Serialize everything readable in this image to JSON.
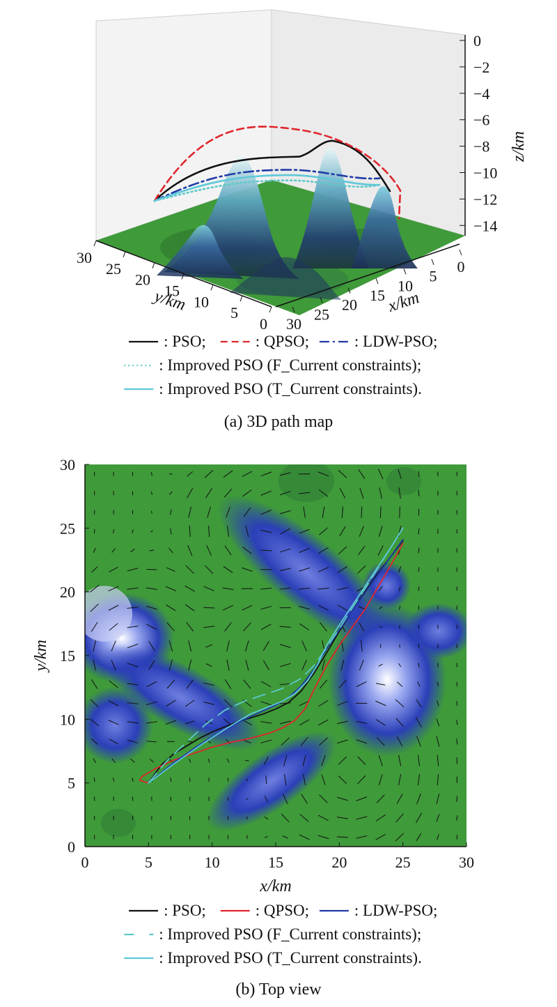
{
  "colors": {
    "terrain_green": "#3f9a3a",
    "terrain_blue": "#2b3fb8",
    "pso": "#111111",
    "qpso": "#e0252b",
    "ldw_pso": "#1f3aa6",
    "improved_f": "#5ec8c8",
    "improved_t": "#5ec8d8"
  },
  "chart_data": [
    {
      "type": "line",
      "view": "3d-surface",
      "caption": "(a) 3D path map",
      "xlabel": "x/km",
      "ylabel": "y/km",
      "zlabel": "z/km",
      "x_ticks": [
        "30",
        "25",
        "20",
        "15",
        "10",
        "5",
        "0"
      ],
      "y_ticks": [
        "30",
        "25",
        "20",
        "15",
        "10",
        "5",
        "0"
      ],
      "z_ticks": [
        "0",
        "−2",
        "−4",
        "−6",
        "−8",
        "−10",
        "−12",
        "−14"
      ],
      "xlim": [
        0,
        30
      ],
      "ylim": [
        0,
        30
      ],
      "zlim": [
        -15,
        0
      ],
      "grid": false,
      "legend_lines": [
        [
          {
            "label": ": PSO;",
            "series": "pso"
          },
          {
            "label": ": QPSO;",
            "series": "qpso"
          },
          {
            "label": ": LDW-PSO;",
            "series": "ldw_pso"
          }
        ],
        [
          {
            "label": ": Improved PSO (F_Current constraints);",
            "series": "improved_f"
          }
        ],
        [
          {
            "label": ": Improved PSO (T_Current constraints).",
            "series": "improved_t"
          }
        ]
      ],
      "series": [
        {
          "key": "pso",
          "min_depth": -7.6,
          "end_depth": -13
        },
        {
          "key": "qpso",
          "min_depth": -6.7,
          "end_depth": -13.5
        },
        {
          "key": "ldw_pso",
          "min_depth": -9.8,
          "end_depth": -11.5
        },
        {
          "key": "improved_f",
          "min_depth": -10.6,
          "end_depth": -12
        },
        {
          "key": "improved_t",
          "min_depth": -10.2,
          "end_depth": -12
        }
      ]
    },
    {
      "type": "line",
      "view": "top",
      "caption": "(b) Top view",
      "xlabel": "x/km",
      "ylabel": "y/km",
      "xlim": [
        0,
        30
      ],
      "ylim": [
        0,
        30
      ],
      "x_ticks": [
        "0",
        "5",
        "10",
        "15",
        "20",
        "25",
        "30"
      ],
      "y_ticks": [
        "0",
        "5",
        "10",
        "15",
        "20",
        "25",
        "30"
      ],
      "grid": false,
      "legend_lines": [
        [
          {
            "label": ": PSO;",
            "series": "pso"
          },
          {
            "label": ": QPSO;",
            "series": "qpso"
          },
          {
            "label": ": LDW-PSO;",
            "series": "ldw_pso"
          }
        ],
        [
          {
            "label": ": Improved PSO (F_Current constraints);",
            "series": "improved_f"
          }
        ],
        [
          {
            "label": ": Improved PSO (T_Current constraints).",
            "series": "improved_t"
          }
        ]
      ],
      "series": [
        {
          "key": "pso",
          "x": [
            5,
            6,
            7,
            8,
            9,
            10,
            11,
            12,
            13,
            14,
            15,
            16,
            17,
            18,
            19,
            20,
            21,
            22,
            23,
            24,
            25
          ],
          "y": [
            5,
            6.4,
            7.3,
            7.9,
            8.5,
            9.0,
            9.4,
            9.8,
            10.1,
            10.4,
            10.8,
            11.3,
            12.2,
            13.6,
            15.2,
            16.9,
            18.5,
            20.0,
            21.4,
            22.7,
            24.0
          ]
        },
        {
          "key": "qpso",
          "x": [
            5,
            4.3,
            4.5,
            5.5,
            7,
            8.5,
            10,
            11.5,
            13,
            14.5,
            15.5,
            16.5,
            17.3,
            18,
            19,
            20,
            21,
            22,
            23,
            24,
            25
          ],
          "y": [
            5,
            5.2,
            5.5,
            6.1,
            6.8,
            7.3,
            7.8,
            8.2,
            8.5,
            8.9,
            9.3,
            9.9,
            10.8,
            12.3,
            14.2,
            15.8,
            17.2,
            18.6,
            20.3,
            22.0,
            23.8
          ]
        },
        {
          "key": "ldw_pso",
          "x": [
            5,
            7,
            9,
            11,
            13,
            15,
            16,
            17,
            18,
            19,
            20,
            21,
            22,
            23,
            24,
            25
          ],
          "y": [
            5,
            6.6,
            8.0,
            9.2,
            10.2,
            11.1,
            11.7,
            12.6,
            13.9,
            15.5,
            17.0,
            18.5,
            19.9,
            21.3,
            22.7,
            24.1
          ]
        },
        {
          "key": "improved_f",
          "x": [
            5,
            6.5,
            8,
            9.5,
            11,
            12.5,
            14,
            15.5,
            17,
            18,
            19,
            20,
            21,
            22,
            23,
            24,
            25
          ],
          "y": [
            5,
            6.8,
            8.2,
            9.6,
            10.7,
            11.4,
            11.9,
            12.4,
            13.2,
            14.2,
            15.6,
            17.1,
            18.7,
            20.2,
            21.8,
            23.4,
            25.0
          ]
        },
        {
          "key": "improved_t",
          "x": [
            5,
            7,
            9,
            11,
            13,
            14.5,
            15.5,
            16.5,
            17.5,
            18.3,
            19,
            20,
            21,
            22,
            23,
            24,
            25
          ],
          "y": [
            5,
            6.5,
            7.9,
            9.2,
            10.4,
            11.0,
            11.4,
            12.0,
            13.0,
            14.3,
            15.8,
            17.4,
            18.9,
            20.4,
            21.9,
            23.4,
            25.0
          ]
        }
      ]
    }
  ]
}
